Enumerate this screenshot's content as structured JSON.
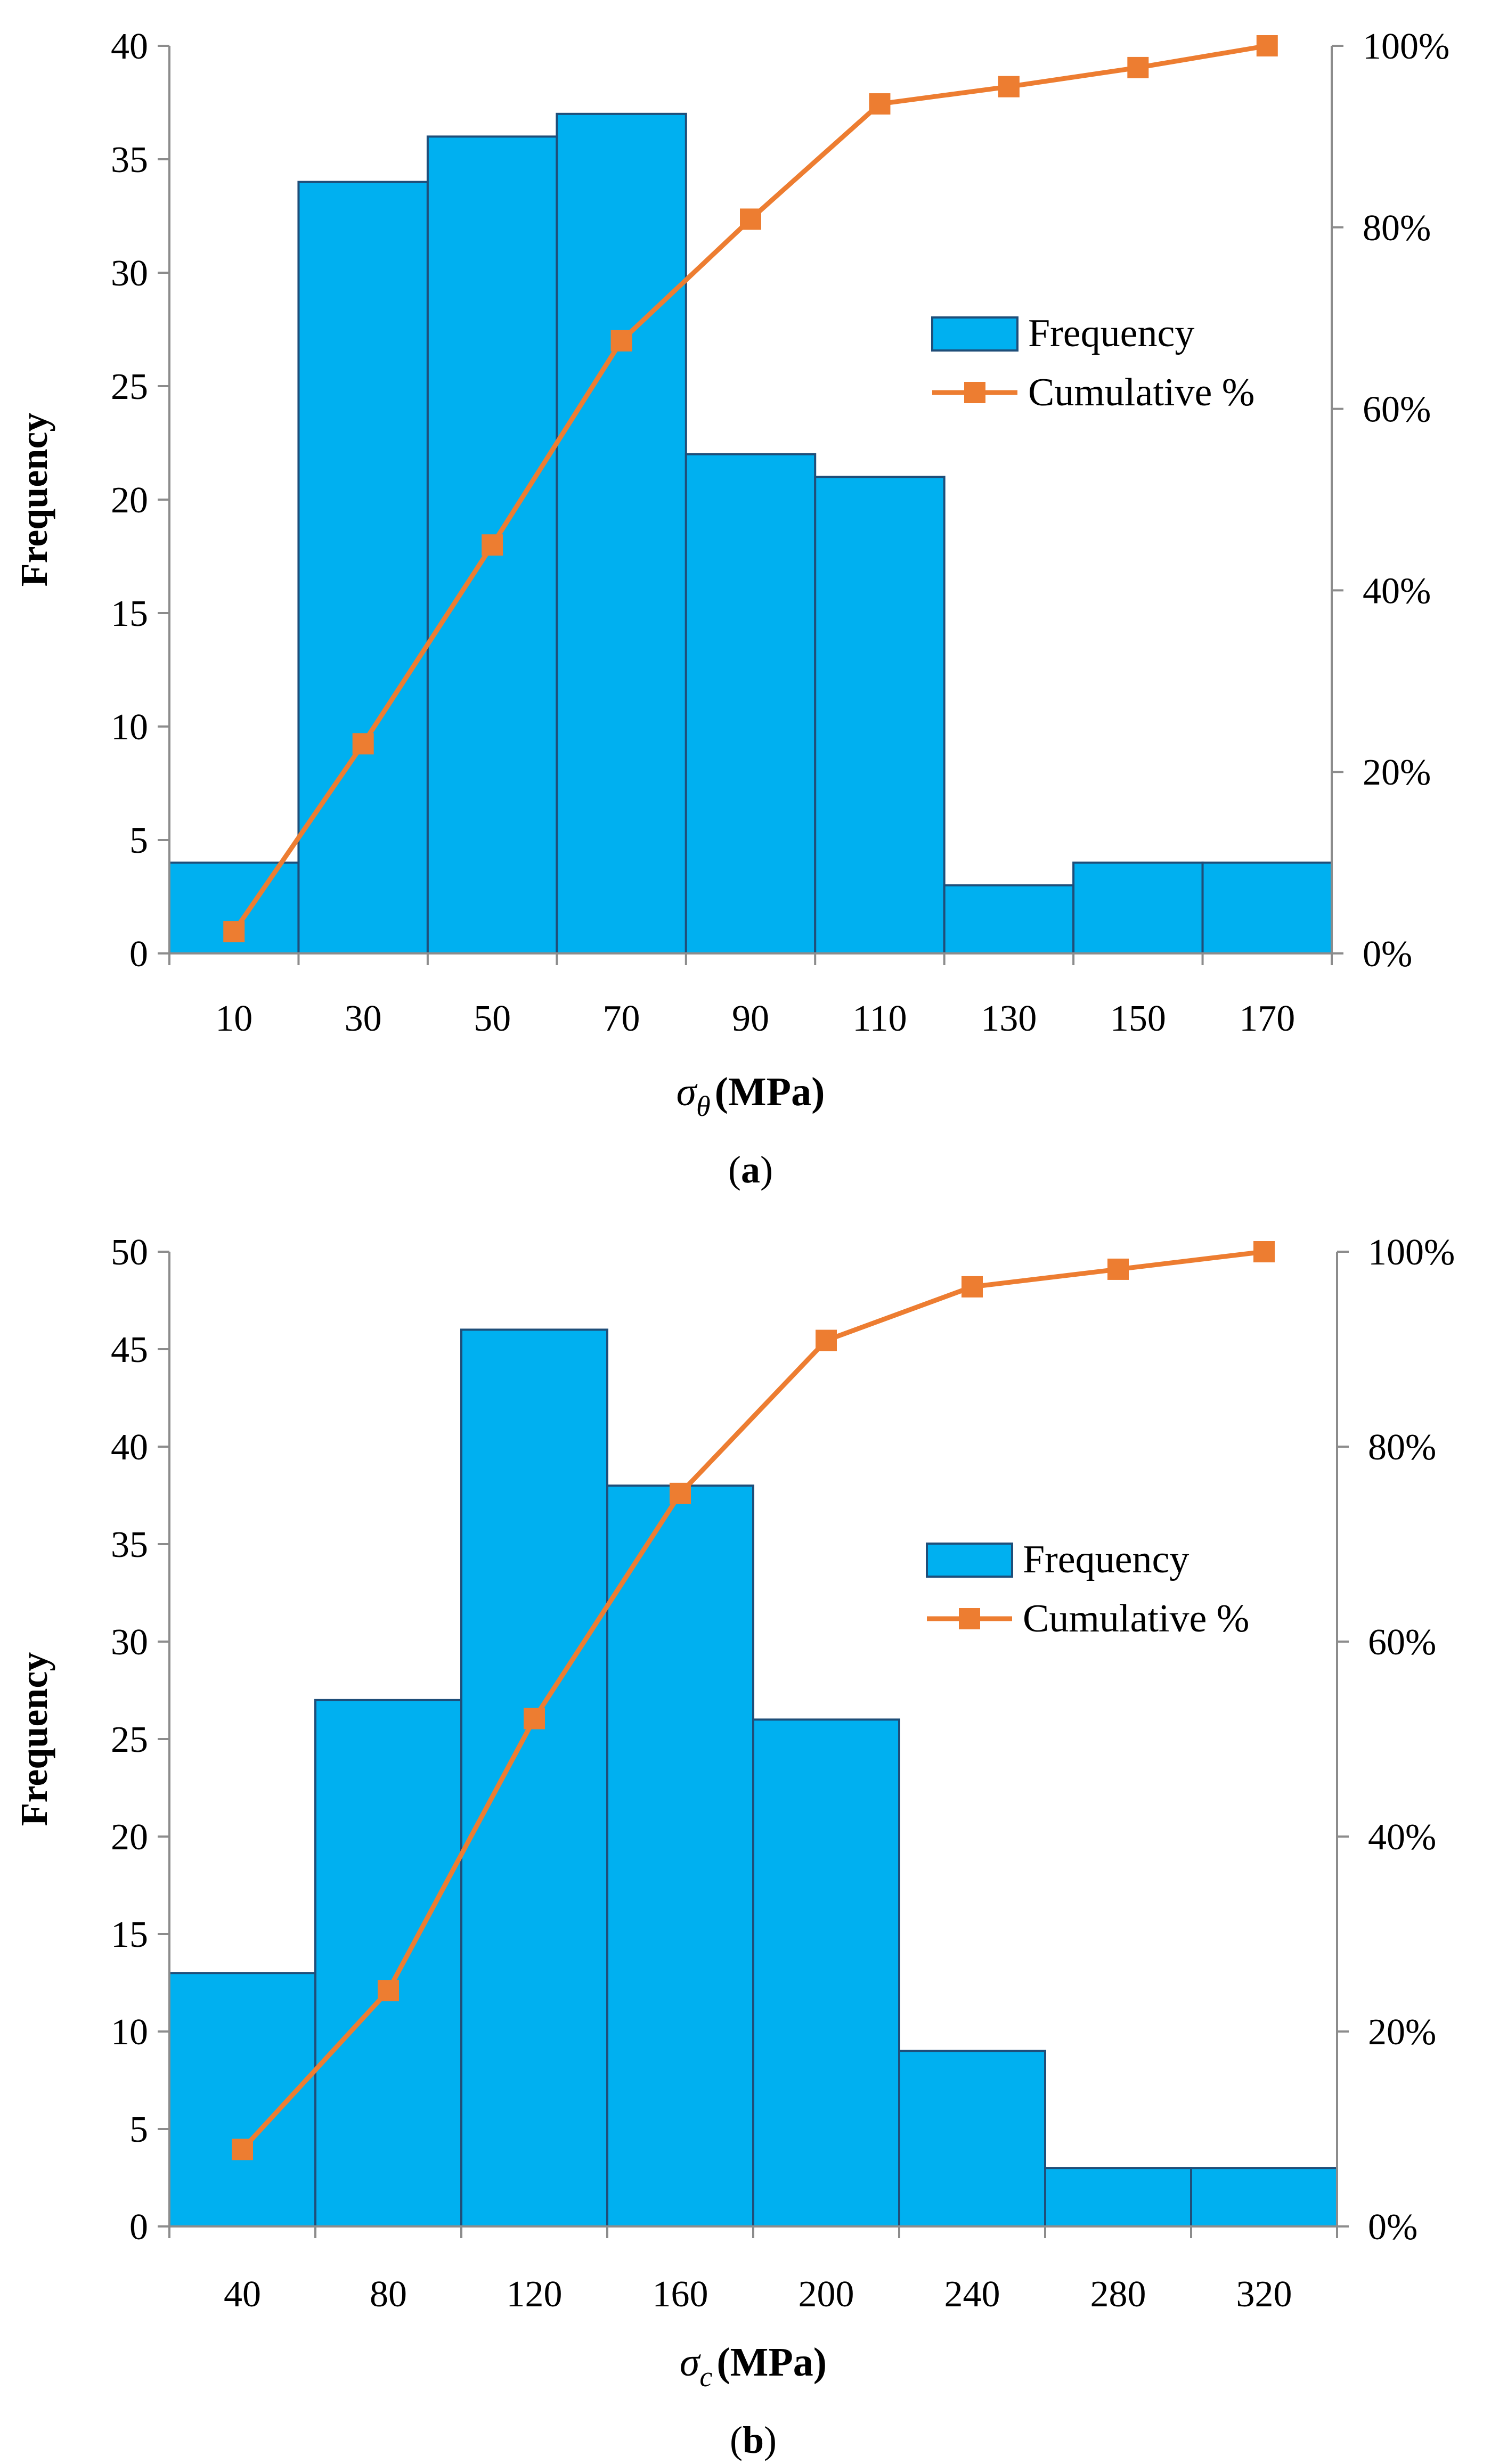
{
  "chart_data": [
    {
      "type": "bar",
      "panel_label": "a",
      "categories": [
        "10",
        "30",
        "50",
        "70",
        "90",
        "110",
        "130",
        "150",
        "170"
      ],
      "series": [
        {
          "name": "Frequency",
          "kind": "bar",
          "axis": "left",
          "color": "#00B0F0",
          "values": [
            4,
            34,
            36,
            37,
            22,
            21,
            3,
            4,
            4
          ]
        },
        {
          "name": "Cumulative %",
          "kind": "line",
          "axis": "right",
          "color": "#ED7D31",
          "values": [
            2.4,
            23.1,
            45.0,
            67.5,
            80.9,
            93.6,
            95.5,
            97.6,
            100.0
          ]
        }
      ],
      "ylabel": "Frequency",
      "xlabel_symbol": "σ",
      "xlabel_subscript": "θ",
      "xlabel_unit": "(MPa)",
      "ylim": [
        0,
        40
      ],
      "y_ticks": [
        "0",
        "5",
        "10",
        "15",
        "20",
        "25",
        "30",
        "35",
        "40"
      ],
      "y2lim": [
        0,
        100
      ],
      "y2_ticks": [
        "0%",
        "20%",
        "40%",
        "60%",
        "80%",
        "100%"
      ],
      "legend_position": "center-right",
      "grid": false
    },
    {
      "type": "bar",
      "panel_label": "b",
      "categories": [
        "40",
        "80",
        "120",
        "160",
        "200",
        "240",
        "280",
        "320"
      ],
      "series": [
        {
          "name": "Frequency",
          "kind": "bar",
          "axis": "left",
          "color": "#00B0F0",
          "values": [
            13,
            27,
            46,
            38,
            26,
            9,
            3,
            3
          ]
        },
        {
          "name": "Cumulative %",
          "kind": "line",
          "axis": "right",
          "color": "#ED7D31",
          "values": [
            7.9,
            24.2,
            52.1,
            75.2,
            90.9,
            96.4,
            98.2,
            100.0
          ]
        }
      ],
      "ylabel": "Frequency",
      "xlabel_symbol": "σ",
      "xlabel_subscript": "c",
      "xlabel_unit": "(MPa)",
      "ylim": [
        0,
        50
      ],
      "y_ticks": [
        "0",
        "5",
        "10",
        "15",
        "20",
        "25",
        "30",
        "35",
        "40",
        "45",
        "50"
      ],
      "y2lim": [
        0,
        100
      ],
      "y2_ticks": [
        "0%",
        "20%",
        "40%",
        "60%",
        "80%",
        "100%"
      ],
      "legend_position": "center-right",
      "grid": false
    }
  ]
}
